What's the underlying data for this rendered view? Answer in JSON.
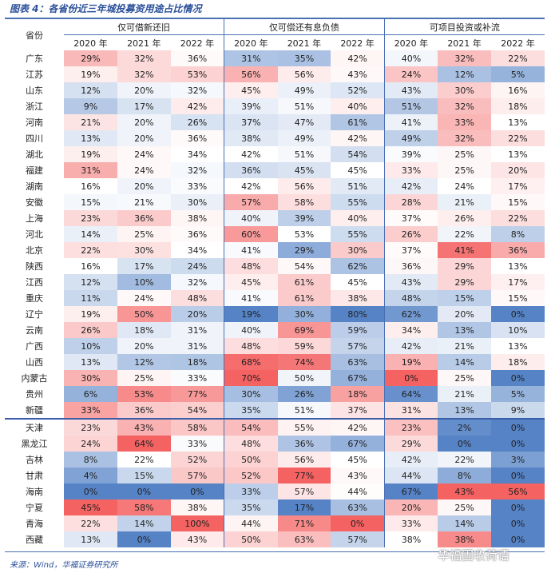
{
  "title": "图表 4：各省份近三年城投募资用途占比情况",
  "header": {
    "province": "省份",
    "groups": [
      "仅可借新还旧",
      "仅可偿还有息负债",
      "可项目投资或补流"
    ],
    "years": [
      "2020 年",
      "2021 年",
      "2022 年",
      "2020 年",
      "2021 年",
      "2022 年",
      "2020 年",
      "2021 年",
      "2022 年"
    ]
  },
  "colors": {
    "blue": "#5583c6",
    "red": "#f46262",
    "line": "#4a70b4"
  },
  "chart_data": {
    "type": "heatmap",
    "title": "各省份近三年城投募资用途占比情况",
    "unit": "%",
    "inverted_columns": [
      5,
      6
    ],
    "separator_after_row": 22,
    "rows": [
      {
        "p": "广东",
        "v": [
          29,
          32,
          36,
          31,
          35,
          42,
          40,
          32,
          22
        ]
      },
      {
        "p": "江苏",
        "v": [
          19,
          32,
          53,
          56,
          56,
          43,
          24,
          12,
          5
        ]
      },
      {
        "p": "山东",
        "v": [
          12,
          20,
          32,
          45,
          49,
          52,
          43,
          30,
          16
        ]
      },
      {
        "p": "浙江",
        "v": [
          9,
          17,
          42,
          39,
          51,
          40,
          51,
          32,
          18
        ]
      },
      {
        "p": "河南",
        "v": [
          21,
          20,
          26,
          37,
          47,
          61,
          41,
          33,
          13
        ]
      },
      {
        "p": "四川",
        "v": [
          13,
          20,
          36,
          38,
          49,
          42,
          49,
          32,
          22
        ]
      },
      {
        "p": "湖北",
        "v": [
          19,
          24,
          34,
          42,
          51,
          54,
          39,
          25,
          13
        ]
      },
      {
        "p": "福建",
        "v": [
          31,
          24,
          32,
          36,
          45,
          45,
          33,
          25,
          20
        ]
      },
      {
        "p": "湖南",
        "v": [
          16,
          20,
          33,
          42,
          56,
          51,
          42,
          24,
          17
        ]
      },
      {
        "p": "安徽",
        "v": [
          15,
          21,
          30,
          57,
          58,
          55,
          28,
          21,
          15
        ]
      },
      {
        "p": "上海",
        "v": [
          23,
          36,
          38,
          40,
          39,
          40,
          37,
          26,
          22
        ]
      },
      {
        "p": "河北",
        "v": [
          14,
          25,
          36,
          60,
          53,
          55,
          26,
          22,
          8
        ]
      },
      {
        "p": "北京",
        "v": [
          22,
          30,
          34,
          41,
          29,
          30,
          37,
          41,
          36
        ]
      },
      {
        "p": "陕西",
        "v": [
          16,
          17,
          24,
          48,
          54,
          62,
          36,
          29,
          13
        ]
      },
      {
        "p": "江西",
        "v": [
          12,
          10,
          32,
          45,
          61,
          45,
          43,
          29,
          17
        ]
      },
      {
        "p": "重庆",
        "v": [
          11,
          24,
          48,
          41,
          61,
          38,
          48,
          15,
          15
        ]
      },
      {
        "p": "辽宁",
        "v": [
          19,
          50,
          20,
          19,
          30,
          80,
          62,
          20,
          0
        ]
      },
      {
        "p": "云南",
        "v": [
          26,
          18,
          31,
          40,
          69,
          59,
          34,
          13,
          10
        ]
      },
      {
        "p": "广西",
        "v": [
          10,
          20,
          31,
          48,
          59,
          57,
          42,
          21,
          13
        ]
      },
      {
        "p": "山西",
        "v": [
          13,
          12,
          18,
          68,
          74,
          63,
          19,
          14,
          18
        ]
      },
      {
        "p": "内蒙古",
        "v": [
          30,
          25,
          33,
          70,
          50,
          67,
          0,
          25,
          0
        ]
      },
      {
        "p": "贵州",
        "v": [
          6,
          53,
          77,
          30,
          26,
          18,
          64,
          21,
          5
        ]
      },
      {
        "p": "新疆",
        "v": [
          33,
          36,
          54,
          35,
          51,
          37,
          31,
          13,
          9
        ]
      },
      {
        "p": "天津",
        "v": [
          23,
          43,
          58,
          54,
          55,
          42,
          23,
          2,
          0
        ]
      },
      {
        "p": "黑龙江",
        "v": [
          24,
          64,
          33,
          48,
          36,
          67,
          29,
          0,
          0
        ]
      },
      {
        "p": "吉林",
        "v": [
          8,
          22,
          52,
          50,
          56,
          45,
          42,
          22,
          3
        ]
      },
      {
        "p": "甘肃",
        "v": [
          4,
          15,
          57,
          52,
          77,
          43,
          44,
          8,
          0
        ]
      },
      {
        "p": "海南",
        "v": [
          0,
          0,
          0,
          33,
          57,
          44,
          67,
          43,
          56
        ]
      },
      {
        "p": "宁夏",
        "v": [
          45,
          58,
          38,
          35,
          17,
          63,
          20,
          25,
          0
        ]
      },
      {
        "p": "青海",
        "v": [
          22,
          14,
          100,
          44,
          71,
          0,
          33,
          14,
          0
        ]
      },
      {
        "p": "西藏",
        "v": [
          13,
          0,
          43,
          50,
          63,
          57,
          38,
          38,
          0
        ]
      }
    ]
  },
  "source": "来源：Wind，华福证券研究所",
  "watermark": "华福固收荷语"
}
